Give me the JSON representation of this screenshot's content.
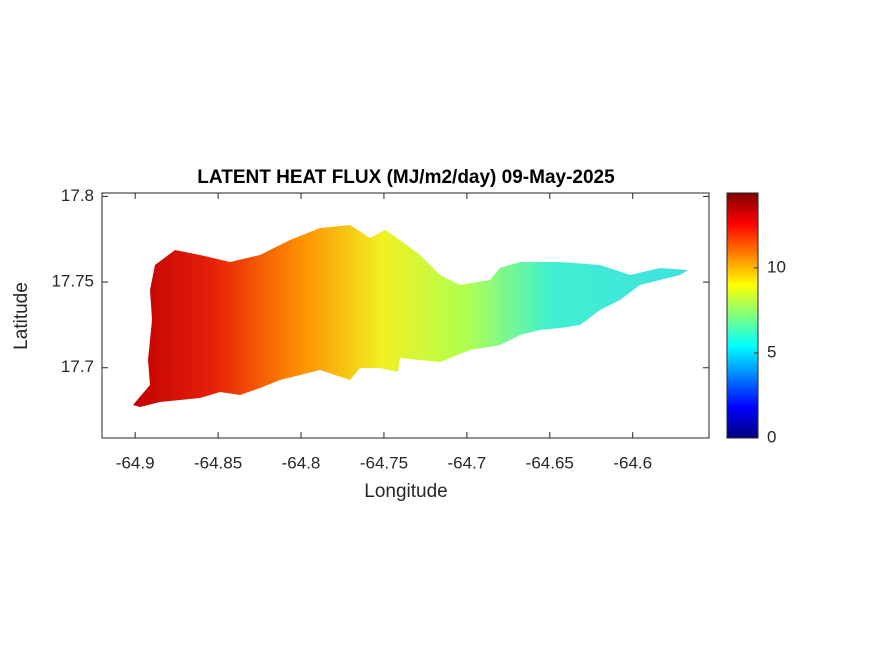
{
  "chart_data": {
    "type": "map",
    "title": "LATENT HEAT FLUX (MJ/m2/day) 09-May-2025",
    "x_label": "Longitude",
    "y_label": "Latitude",
    "xlim": [
      -64.92,
      -64.554
    ],
    "ylim": [
      17.659,
      17.802
    ],
    "xticks": [
      -64.9,
      -64.85,
      -64.8,
      -64.75,
      -64.7,
      -64.65,
      -64.6
    ],
    "yticks": [
      17.7,
      17.75,
      17.8
    ],
    "colorbar": {
      "clim": [
        0,
        14.4
      ],
      "ticks": [
        0,
        5,
        10
      ],
      "colormap": "jet"
    }
  }
}
